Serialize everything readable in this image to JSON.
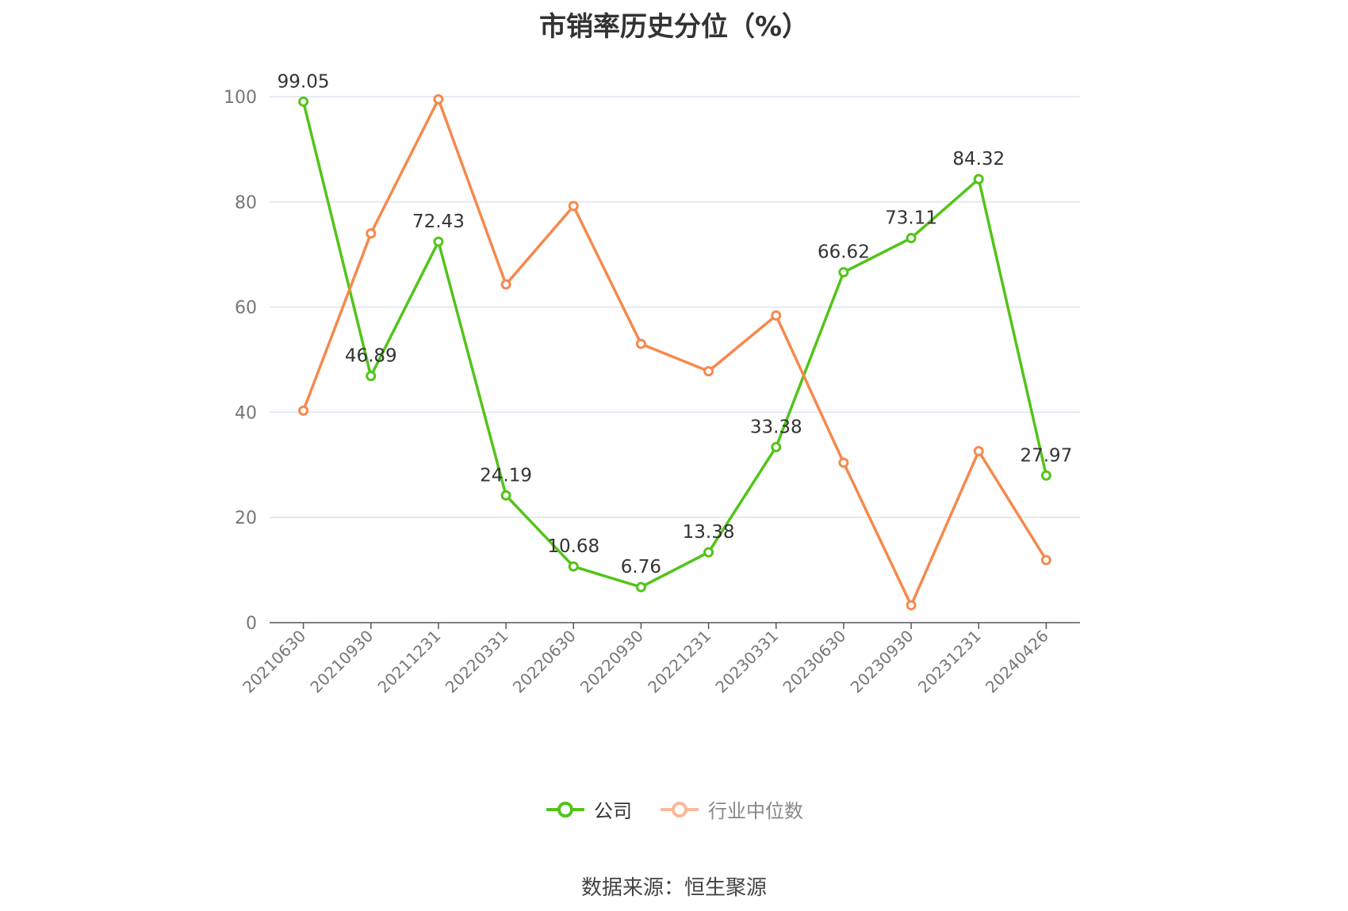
{
  "chart_data": {
    "type": "line",
    "title": "市销率历史分位（%）",
    "categories": [
      "20210630",
      "20210930",
      "20211231",
      "20220331",
      "20220630",
      "20220930",
      "20221231",
      "20230331",
      "20230630",
      "20230930",
      "20231231",
      "20240426"
    ],
    "ylim": [
      0,
      100
    ],
    "yticks": [
      0,
      20,
      40,
      60,
      80,
      100
    ],
    "grid": true,
    "legend_position": "bottom",
    "series": [
      {
        "name": "公司",
        "color": "#52c41a",
        "show_labels": true,
        "values": [
          99.05,
          46.89,
          72.43,
          24.19,
          10.68,
          6.76,
          13.38,
          33.38,
          66.62,
          73.11,
          84.32,
          27.97
        ]
      },
      {
        "name": "行业中位数",
        "color": "#f5894d",
        "show_labels": false,
        "values": [
          40.3,
          74.0,
          99.5,
          64.3,
          79.2,
          53.0,
          47.8,
          58.4,
          30.4,
          3.3,
          32.6,
          11.9
        ]
      }
    ]
  },
  "legend": {
    "company": "公司",
    "industry": "行业中位数"
  },
  "footer": {
    "source": "数据来源：恒生聚源"
  }
}
